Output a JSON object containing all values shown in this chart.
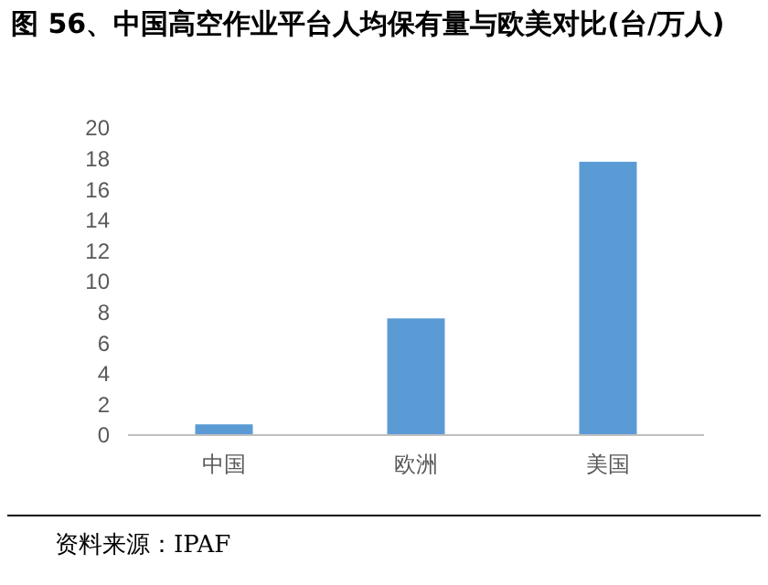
{
  "chart_data": {
    "type": "bar",
    "title": "图 56、中国高空作业平台人均保有量与欧美对比(台/万人)",
    "categories": [
      "中国",
      "欧洲",
      "美国"
    ],
    "values": [
      0.7,
      7.6,
      17.8
    ],
    "color": "#5b9bd5",
    "ylim": [
      0,
      20
    ],
    "yticks": [
      0,
      2,
      4,
      6,
      8,
      10,
      12,
      14,
      16,
      18,
      20
    ],
    "grid": false,
    "annotations": [
      "资料来源：IPAF"
    ]
  }
}
